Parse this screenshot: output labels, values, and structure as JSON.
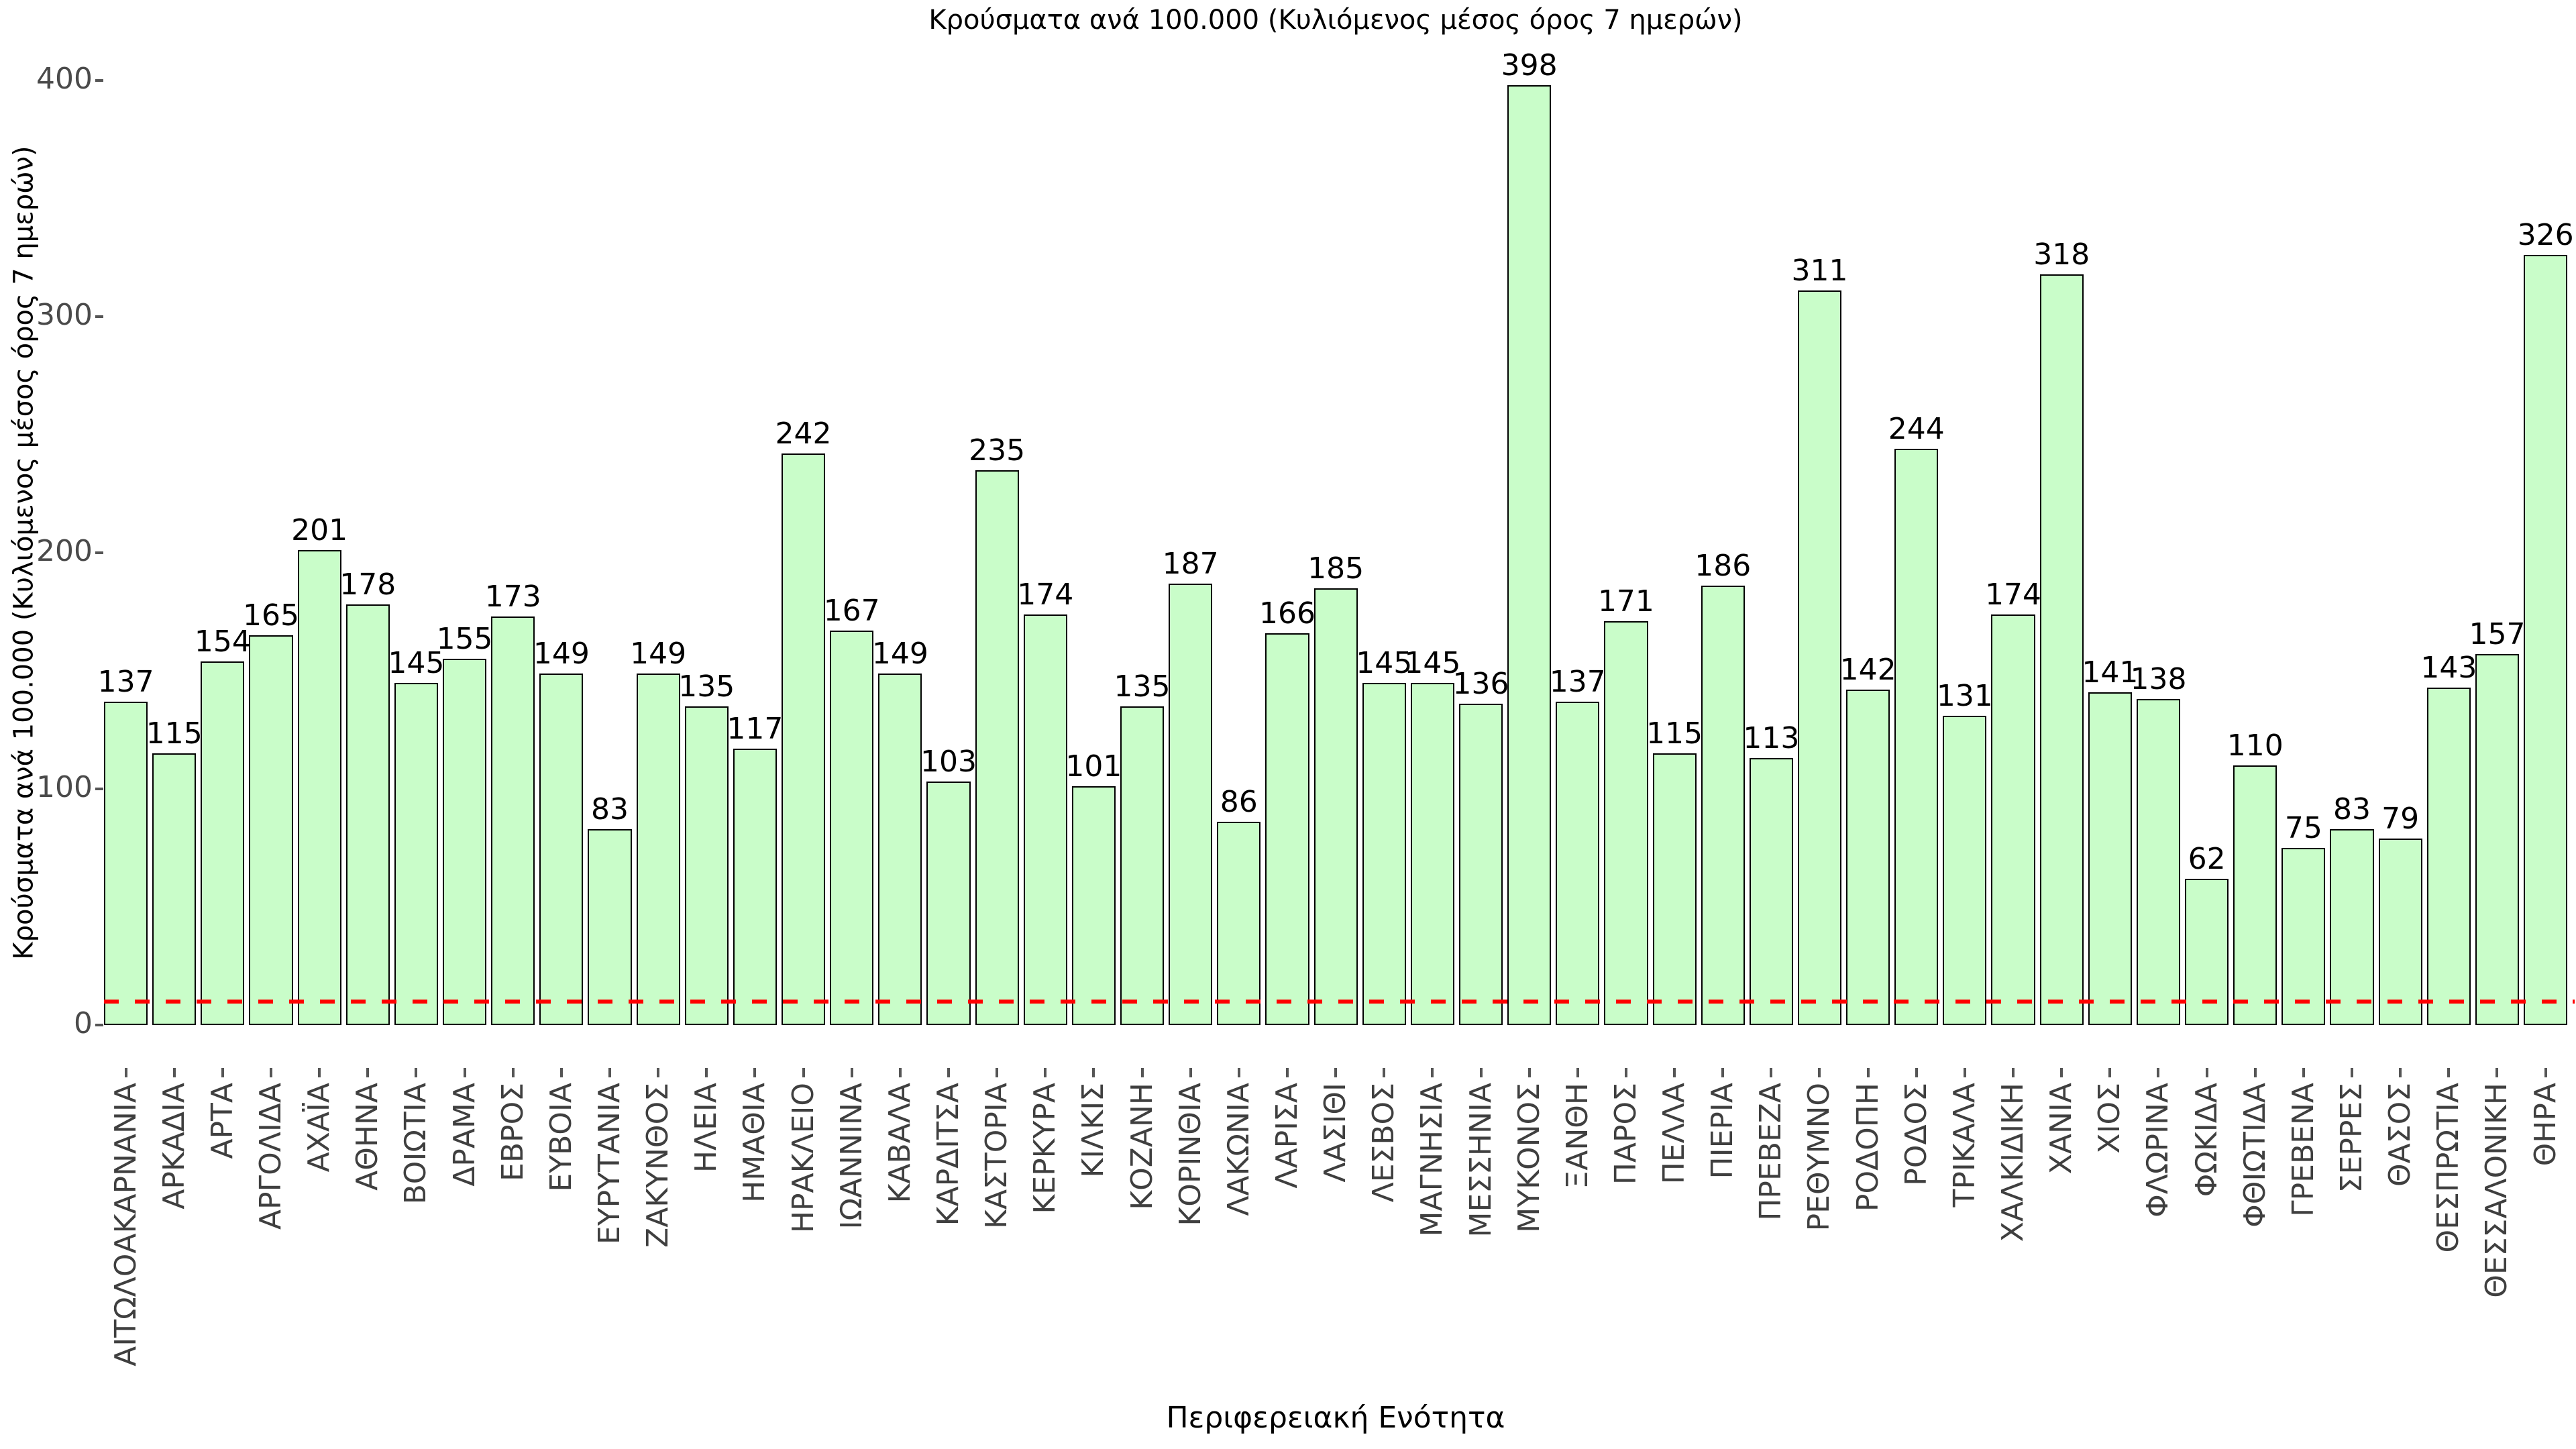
{
  "title": "Κρούσματα ανά 100.000 (Κυλιόμενος μέσος όρος 7 ημερών)",
  "chart_data": {
    "type": "bar",
    "title": "Κρούσματα ανά 100.000 (Κυλιόμενος μέσος όρος 7 ημερών)",
    "xlabel": "Περιφερειακή Ενότητα",
    "ylabel": "Κρούσματα ανά 100.000 (Κυλιόμενος μέσος όρος 7 ημερών)",
    "ylim": [
      0,
      400
    ],
    "yticks": [
      0,
      100,
      200,
      300,
      400
    ],
    "grid": false,
    "legend_position": "none",
    "bar_fill_color": "#C9FDC9",
    "bar_edge_color": "#000000",
    "value_label_color": "#000000",
    "tick_color": "#555555",
    "reference_line": {
      "value": 10,
      "color": "#FF0000",
      "style": "dashed"
    },
    "categories": [
      "ΑΙΤΩΛΟΑΚΑΡΝΑΝΙΑ",
      "ΑΡΚΑΔΙΑ",
      "ΑΡΤΑ",
      "ΑΡΓΟΛΙΔΑ",
      "ΑΧΑΪΑ",
      "ΑΘΗΝΑ",
      "ΒΟΙΩΤΙΑ",
      "ΔΡΑΜΑ",
      "ΕΒΡΟΣ",
      "ΕΥΒΟΙΑ",
      "ΕΥΡΥΤΑΝΙΑ",
      "ΖΑΚΥΝΘΟΣ",
      "ΗΛΕΙΑ",
      "ΗΜΑΘΙΑ",
      "ΗΡΑΚΛΕΙΟ",
      "ΙΩΑΝΝΙΝΑ",
      "ΚΑΒΑΛΑ",
      "ΚΑΡΔΙΤΣΑ",
      "ΚΑΣΤΟΡΙΑ",
      "ΚΕΡΚΥΡΑ",
      "ΚΙΛΚΙΣ",
      "ΚΟΖΑΝΗ",
      "ΚΟΡΙΝΘΙΑ",
      "ΛΑΚΩΝΙΑ",
      "ΛΑΡΙΣΑ",
      "ΛΑΣΙΘΙ",
      "ΛΕΣΒΟΣ",
      "ΜΑΓΝΗΣΙΑ",
      "ΜΕΣΣΗΝΙΑ",
      "ΜΥΚΟΝΟΣ",
      "ΞΑΝΘΗ",
      "ΠΑΡΟΣ",
      "ΠΕΛΛΑ",
      "ΠΙΕΡΙΑ",
      "ΠΡΕΒΕΖΑ",
      "ΡΕΘΥΜΝΟ",
      "ΡΟΔΟΠΗ",
      "ΡΟΔΟΣ",
      "ΤΡΙΚΑΛΑ",
      "ΧΑΛΚΙΔΙΚΗ",
      "ΧΑΝΙΑ",
      "ΧΙΟΣ",
      "ΦΛΩΡΙΝΑ",
      "ΦΩΚΙΔΑ",
      "ΦΘΙΩΤΙΔΑ",
      "ΓΡΕΒΕΝΑ",
      "ΣΕΡΡΕΣ",
      "ΘΑΣΟΣ",
      "ΘΕΣΠΡΩΤΙΑ",
      "ΘΕΣΣΑΛΟΝΙΚΗ",
      "ΘΗΡΑ"
    ],
    "values": [
      137,
      115,
      154,
      165,
      201,
      178,
      145,
      155,
      173,
      149,
      83,
      149,
      135,
      117,
      242,
      167,
      149,
      103,
      235,
      174,
      101,
      135,
      187,
      86,
      166,
      185,
      145,
      145,
      136,
      398,
      137,
      171,
      115,
      186,
      113,
      311,
      142,
      244,
      131,
      174,
      318,
      141,
      138,
      62,
      110,
      75,
      83,
      79,
      143,
      157,
      326
    ]
  }
}
